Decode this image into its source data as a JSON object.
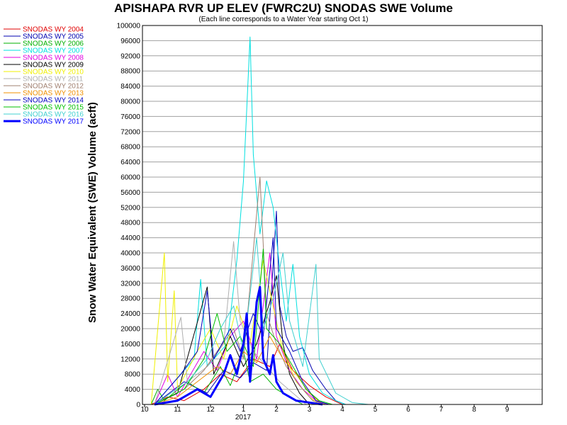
{
  "chart_data": {
    "type": "line",
    "title": "APISHAPA RVR UP ELEV (FWRC2U) SNODAS SWE Volume",
    "subtitle": "(Each line corresponds to a Water Year starting Oct 1)",
    "ylabel": "Snow Water Equivalent (SWE) Volume (acft)",
    "xlabel": "",
    "x_year_label": "2017",
    "ylim": [
      0,
      100000
    ],
    "yticks": [
      0,
      4000,
      8000,
      12000,
      16000,
      20000,
      24000,
      28000,
      32000,
      36000,
      40000,
      44000,
      48000,
      52000,
      56000,
      60000,
      64000,
      68000,
      72000,
      76000,
      80000,
      84000,
      88000,
      92000,
      96000,
      100000
    ],
    "xticks": [
      "10",
      "11",
      "12",
      "1",
      "2",
      "3",
      "4",
      "5",
      "6",
      "7",
      "8",
      "9"
    ],
    "grid": true,
    "legend_position": "left",
    "series": [
      {
        "name": "SNODAS WY 2004",
        "color": "#e00000",
        "width": 1,
        "points": [
          [
            0.2,
            0
          ],
          [
            0.7,
            2000
          ],
          [
            1.2,
            1000
          ],
          [
            1.8,
            4000
          ],
          [
            2.3,
            8000
          ],
          [
            2.8,
            6000
          ],
          [
            3.3,
            12000
          ],
          [
            3.8,
            10000
          ],
          [
            4.1,
            16000
          ],
          [
            4.5,
            9000
          ],
          [
            5.0,
            5000
          ],
          [
            5.5,
            2000
          ],
          [
            6.0,
            0
          ]
        ]
      },
      {
        "name": "SNODAS WY 2005",
        "color": "#0000b0",
        "width": 1,
        "points": [
          [
            0.3,
            0
          ],
          [
            1.2,
            6000
          ],
          [
            1.9,
            3000
          ],
          [
            2.4,
            9000
          ],
          [
            2.9,
            7000
          ],
          [
            3.3,
            11000
          ],
          [
            3.7,
            9000
          ],
          [
            4.0,
            51000
          ],
          [
            4.1,
            26000
          ],
          [
            4.3,
            18000
          ],
          [
            4.5,
            14000
          ],
          [
            4.8,
            15000
          ],
          [
            5.1,
            9000
          ],
          [
            5.5,
            4000
          ],
          [
            5.8,
            1000
          ],
          [
            6.1,
            0
          ]
        ]
      },
      {
        "name": "SNODAS WY 2006",
        "color": "#00b000",
        "width": 1,
        "points": [
          [
            0.2,
            0
          ],
          [
            0.4,
            4000
          ],
          [
            0.6,
            1000
          ],
          [
            1.3,
            6000
          ],
          [
            1.8,
            3000
          ],
          [
            2.3,
            10000
          ],
          [
            2.6,
            5000
          ],
          [
            3.0,
            14000
          ],
          [
            3.2,
            6000
          ],
          [
            3.6,
            8000
          ],
          [
            4.0,
            4000
          ],
          [
            4.4,
            2000
          ],
          [
            4.8,
            0
          ]
        ]
      },
      {
        "name": "SNODAS WY 2007",
        "color": "#00e0e0",
        "width": 1,
        "points": [
          [
            0.3,
            0
          ],
          [
            1.5,
            12000
          ],
          [
            1.7,
            33000
          ],
          [
            1.9,
            10000
          ],
          [
            2.5,
            16000
          ],
          [
            2.8,
            38000
          ],
          [
            3.0,
            59000
          ],
          [
            3.2,
            97000
          ],
          [
            3.3,
            66000
          ],
          [
            3.5,
            45000
          ],
          [
            3.7,
            59000
          ],
          [
            3.9,
            52000
          ],
          [
            4.1,
            36000
          ],
          [
            4.3,
            22000
          ],
          [
            4.5,
            37000
          ],
          [
            4.7,
            18000
          ],
          [
            5.0,
            8000
          ],
          [
            5.4,
            3000
          ],
          [
            5.8,
            1000
          ],
          [
            6.1,
            0
          ]
        ]
      },
      {
        "name": "SNODAS WY 2008",
        "color": "#e000e0",
        "width": 1,
        "points": [
          [
            0.3,
            0
          ],
          [
            0.7,
            8000
          ],
          [
            1.0,
            2000
          ],
          [
            1.8,
            14000
          ],
          [
            2.2,
            9000
          ],
          [
            2.6,
            18000
          ],
          [
            3.0,
            22000
          ],
          [
            3.4,
            12000
          ],
          [
            3.8,
            40000
          ],
          [
            4.0,
            18000
          ],
          [
            4.4,
            9000
          ],
          [
            4.8,
            4000
          ],
          [
            5.2,
            1000
          ],
          [
            5.5,
            0
          ]
        ]
      },
      {
        "name": "SNODAS WY 2009",
        "color": "#000000",
        "width": 1,
        "points": [
          [
            0.3,
            0
          ],
          [
            1.0,
            3000
          ],
          [
            1.9,
            31000
          ],
          [
            2.1,
            8000
          ],
          [
            2.6,
            18000
          ],
          [
            3.0,
            10000
          ],
          [
            3.4,
            16000
          ],
          [
            3.8,
            27000
          ],
          [
            4.0,
            34000
          ],
          [
            4.2,
            16000
          ],
          [
            4.4,
            8000
          ],
          [
            4.7,
            3000
          ],
          [
            5.0,
            0
          ]
        ]
      },
      {
        "name": "SNODAS WY 2010",
        "color": "#f0f000",
        "width": 1,
        "points": [
          [
            0.2,
            0
          ],
          [
            0.6,
            40000
          ],
          [
            0.7,
            6000
          ],
          [
            0.9,
            30000
          ],
          [
            1.0,
            4000
          ],
          [
            1.6,
            14000
          ],
          [
            2.0,
            20000
          ],
          [
            2.4,
            12000
          ],
          [
            2.8,
            26000
          ],
          [
            3.2,
            16000
          ],
          [
            3.6,
            38000
          ],
          [
            3.8,
            30000
          ],
          [
            4.2,
            14000
          ],
          [
            4.6,
            6000
          ],
          [
            5.0,
            2000
          ],
          [
            5.3,
            0
          ]
        ]
      },
      {
        "name": "SNODAS WY 2011",
        "color": "#b0b0b0",
        "width": 1,
        "points": [
          [
            0.3,
            0
          ],
          [
            1.1,
            23000
          ],
          [
            1.3,
            6000
          ],
          [
            1.9,
            10000
          ],
          [
            2.4,
            16000
          ],
          [
            2.7,
            43000
          ],
          [
            2.9,
            22000
          ],
          [
            3.3,
            14000
          ],
          [
            3.7,
            10000
          ],
          [
            4.1,
            6000
          ],
          [
            4.5,
            3000
          ],
          [
            4.9,
            0
          ]
        ]
      },
      {
        "name": "SNODAS WY 2012",
        "color": "#a08070",
        "width": 1,
        "points": [
          [
            0.3,
            0
          ],
          [
            1.2,
            4000
          ],
          [
            1.8,
            9000
          ],
          [
            2.2,
            14000
          ],
          [
            2.7,
            20000
          ],
          [
            3.0,
            12000
          ],
          [
            3.5,
            60000
          ],
          [
            3.7,
            24000
          ],
          [
            4.0,
            16000
          ],
          [
            4.3,
            10000
          ],
          [
            4.7,
            5000
          ],
          [
            5.1,
            1000
          ],
          [
            5.5,
            0
          ]
        ]
      },
      {
        "name": "SNODAS WY 2013",
        "color": "#f09000",
        "width": 1,
        "points": [
          [
            0.3,
            0
          ],
          [
            1.0,
            2000
          ],
          [
            1.6,
            6000
          ],
          [
            2.2,
            10000
          ],
          [
            2.6,
            8000
          ],
          [
            3.0,
            14000
          ],
          [
            3.4,
            11000
          ],
          [
            3.8,
            18000
          ],
          [
            4.2,
            12000
          ],
          [
            4.6,
            8000
          ],
          [
            5.0,
            3000
          ],
          [
            5.4,
            0
          ]
        ]
      },
      {
        "name": "SNODAS WY 2014",
        "color": "#0000c0",
        "width": 1,
        "points": [
          [
            0.3,
            0
          ],
          [
            1.1,
            8000
          ],
          [
            1.6,
            14000
          ],
          [
            1.9,
            30000
          ],
          [
            2.1,
            12000
          ],
          [
            2.6,
            20000
          ],
          [
            2.9,
            14000
          ],
          [
            3.3,
            24000
          ],
          [
            3.6,
            18000
          ],
          [
            3.9,
            44000
          ],
          [
            4.0,
            20000
          ],
          [
            4.4,
            14000
          ],
          [
            4.8,
            6000
          ],
          [
            5.2,
            1000
          ],
          [
            5.6,
            0
          ]
        ]
      },
      {
        "name": "SNODAS WY 2015",
        "color": "#00c000",
        "width": 1,
        "points": [
          [
            0.3,
            0
          ],
          [
            1.2,
            4000
          ],
          [
            1.8,
            12000
          ],
          [
            2.2,
            24000
          ],
          [
            2.5,
            14000
          ],
          [
            2.9,
            18000
          ],
          [
            3.3,
            10000
          ],
          [
            3.6,
            41000
          ],
          [
            3.7,
            20000
          ],
          [
            4.1,
            16000
          ],
          [
            4.5,
            10000
          ],
          [
            4.9,
            4000
          ],
          [
            5.3,
            1000
          ],
          [
            5.7,
            0
          ]
        ]
      },
      {
        "name": "SNODAS WY 2016",
        "color": "#40d0d0",
        "width": 1,
        "points": [
          [
            0.3,
            0
          ],
          [
            1.3,
            6000
          ],
          [
            1.9,
            12000
          ],
          [
            2.3,
            20000
          ],
          [
            2.7,
            26000
          ],
          [
            3.0,
            14000
          ],
          [
            3.4,
            44000
          ],
          [
            3.6,
            20000
          ],
          [
            3.9,
            28000
          ],
          [
            4.2,
            40000
          ],
          [
            4.4,
            22000
          ],
          [
            4.8,
            10000
          ],
          [
            5.2,
            37000
          ],
          [
            5.3,
            12000
          ],
          [
            5.8,
            3000
          ],
          [
            6.3,
            500
          ],
          [
            6.8,
            0
          ]
        ]
      },
      {
        "name": "SNODAS WY 2017",
        "color": "#0000ff",
        "width": 3,
        "points": [
          [
            0.3,
            0
          ],
          [
            1.0,
            1000
          ],
          [
            1.6,
            4000
          ],
          [
            2.0,
            2000
          ],
          [
            2.4,
            8000
          ],
          [
            2.6,
            13000
          ],
          [
            2.8,
            8000
          ],
          [
            3.0,
            16000
          ],
          [
            3.1,
            24000
          ],
          [
            3.2,
            6000
          ],
          [
            3.4,
            27000
          ],
          [
            3.5,
            31000
          ],
          [
            3.6,
            12000
          ],
          [
            3.8,
            8000
          ],
          [
            3.9,
            13000
          ],
          [
            4.0,
            6000
          ],
          [
            4.2,
            3000
          ],
          [
            4.4,
            2000
          ],
          [
            4.6,
            1000
          ],
          [
            5.0,
            500
          ],
          [
            5.4,
            0
          ]
        ]
      }
    ]
  }
}
